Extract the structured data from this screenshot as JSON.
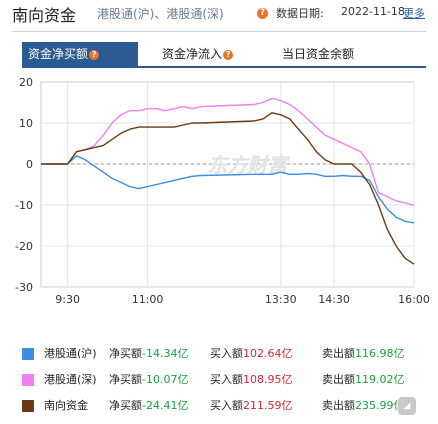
{
  "header": {
    "title": "南向资金",
    "subtitle": "港股通(沪)、港股通(深)",
    "date_label": "数据日期:",
    "date_value": "2022-11-18",
    "more_label": "更多"
  },
  "tabs": [
    {
      "label": "资金净买额"
    },
    {
      "label": "资金净流入"
    },
    {
      "label": "当日资金余额"
    }
  ],
  "colors": {
    "hgt_sh": "#3a8ee6",
    "hgt_sz": "#f27ff2",
    "southbound": "#6b3a10",
    "accent": "#2c5a93",
    "negative": "#17a13a"
  },
  "legend": [
    {
      "name": "港股通(沪)",
      "net_label": "净买额",
      "net_value": "-14.34亿",
      "buy_label": "买入额",
      "buy_value": "102.64亿",
      "sell_label": "卖出额",
      "sell_value": "116.98亿"
    },
    {
      "name": "港股通(深)",
      "net_label": "净买额",
      "net_value": "-10.07亿",
      "buy_label": "买入额",
      "buy_value": "108.95亿",
      "sell_label": "卖出额",
      "sell_value": "119.02亿"
    },
    {
      "name": "南向资金",
      "net_label": "净买额",
      "net_value": "-24.41亿",
      "buy_label": "买入额",
      "buy_value": "211.59亿",
      "sell_label": "卖出额",
      "sell_value": "235.99亿"
    }
  ],
  "chart_data": {
    "type": "line",
    "xlabel": "",
    "ylabel": "",
    "ylim": [
      -30,
      20
    ],
    "yticks": [
      20,
      10,
      0,
      -10,
      -20,
      -30
    ],
    "xticks": [
      "9:30",
      "11:00",
      "13:30",
      "14:30",
      "16:00"
    ],
    "x": [
      "9:00",
      "9:15",
      "9:30",
      "9:40",
      "9:50",
      "10:00",
      "10:10",
      "10:20",
      "10:30",
      "10:40",
      "10:50",
      "11:00",
      "11:10",
      "11:20",
      "11:30",
      "11:40",
      "11:50",
      "12:00",
      "13:00",
      "13:10",
      "13:20",
      "13:30",
      "13:40",
      "13:50",
      "14:00",
      "14:10",
      "14:20",
      "14:30",
      "14:40",
      "14:50",
      "15:00",
      "15:10",
      "15:20",
      "15:30",
      "15:40",
      "15:50",
      "16:00"
    ],
    "series": [
      {
        "name": "港股通(沪)",
        "values": [
          0,
          0,
          0,
          2,
          1,
          -0.5,
          -2,
          -3.5,
          -4.5,
          -5.5,
          -6,
          -5.5,
          -5,
          -4.5,
          -4,
          -3.5,
          -3,
          -2.8,
          -2.5,
          -2.5,
          -2.5,
          -2,
          -2.5,
          -2.5,
          -2.3,
          -2.5,
          -3,
          -3,
          -2.8,
          -3,
          -3,
          -4,
          -8,
          -11,
          -13,
          -14,
          -14.34
        ]
      },
      {
        "name": "港股通(深)",
        "values": [
          0,
          0,
          0,
          3,
          3.5,
          4.5,
          7,
          10,
          12,
          13,
          13,
          13.5,
          13.5,
          13,
          13.5,
          14,
          13.5,
          14,
          14.5,
          15,
          16,
          15.5,
          14.5,
          13,
          11,
          9,
          7,
          6,
          5,
          4,
          3,
          0,
          -7,
          -8,
          -9,
          -9.5,
          -10.07
        ]
      },
      {
        "name": "南向资金",
        "values": [
          0,
          0,
          0,
          3,
          3.5,
          4,
          4.5,
          6,
          7.5,
          8.5,
          9,
          9,
          9,
          9,
          9,
          9.5,
          10,
          10,
          10.5,
          11,
          12.5,
          12,
          11,
          8.5,
          6,
          3,
          1,
          0,
          0,
          0,
          -2,
          -5,
          -10,
          -16,
          -20,
          -23,
          -24.41
        ]
      }
    ],
    "grid": true,
    "watermark": "东方财富",
    "legend_position": "bottom"
  }
}
